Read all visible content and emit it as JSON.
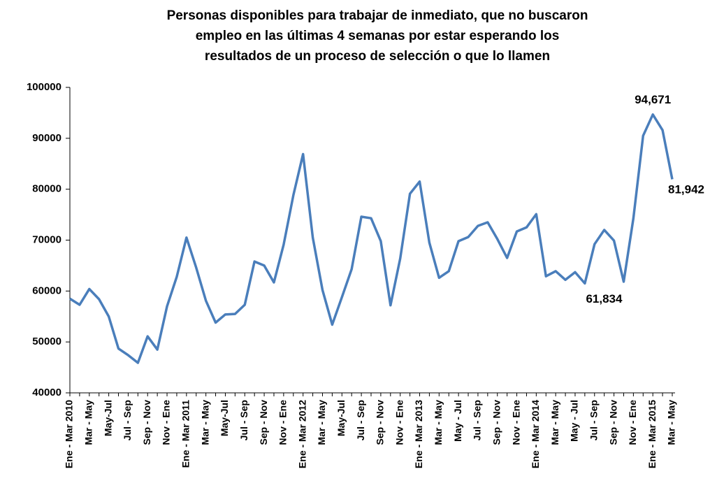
{
  "chart_data": {
    "type": "line",
    "title": [
      "Personas disponibles para trabajar de inmediato, que no buscaron",
      "empleo en las últimas 4 semanas por estar esperando los",
      "resultados de un proceso de selección o que lo llamen"
    ],
    "categories": [
      "Ene - Mar 2010",
      null,
      "Mar - May",
      null,
      "May-Jul",
      null,
      "Jul - Sep",
      null,
      "Sep - Nov",
      null,
      "Nov - Ene",
      null,
      "Ene - Mar 2011",
      null,
      "Mar - May",
      null,
      "May-Jul",
      null,
      "Jul - Sep",
      null,
      "Sep - Nov",
      null,
      "Nov - Ene",
      null,
      "Ene - Mar 2012",
      null,
      "Mar - May",
      null,
      "May-Jul",
      null,
      "Jul - Sep",
      null,
      "Sep - Nov",
      null,
      "Nov - Ene",
      null,
      "Ene - Mar 2013",
      null,
      "Mar - May",
      null,
      "May - Jul",
      null,
      "Jul - Sep",
      null,
      "Sep - Nov",
      null,
      "Nov - Ene",
      null,
      "Ene - Mar 2014",
      null,
      "Mar - May",
      null,
      "May - Jul",
      null,
      "Jul - Sep",
      null,
      "Sep - Nov",
      null,
      "Nov - Ene",
      null,
      "Ene - Mar 2015",
      null,
      "Mar - May"
    ],
    "series": [
      {
        "name": "Personas",
        "color": "#4a7ebb",
        "values": [
          58500,
          57300,
          60400,
          58400,
          55000,
          48700,
          47400,
          45900,
          51100,
          48500,
          57000,
          62800,
          70500,
          64600,
          58100,
          53800,
          55400,
          55500,
          57300,
          65800,
          65000,
          61700,
          69100,
          78800,
          86900,
          70500,
          60200,
          53400,
          58800,
          64300,
          74600,
          74300,
          69800,
          57200,
          66400,
          79100,
          81500,
          69500,
          62600,
          63900,
          69800,
          70600,
          72800,
          73500,
          70200,
          66500,
          71700,
          72500,
          75100,
          62900,
          63900,
          62200,
          63700,
          61500,
          69200,
          72000,
          69900,
          61834,
          74300,
          90500,
          94671,
          91600,
          81942
        ],
        "value_labels": [
          null,
          null,
          null,
          null,
          null,
          null,
          null,
          null,
          null,
          null,
          null,
          null,
          null,
          null,
          null,
          null,
          null,
          null,
          null,
          null,
          null,
          null,
          null,
          null,
          null,
          null,
          null,
          null,
          null,
          null,
          null,
          null,
          null,
          null,
          null,
          null,
          null,
          null,
          null,
          null,
          null,
          null,
          null,
          null,
          null,
          null,
          null,
          null,
          null,
          null,
          null,
          null,
          null,
          null,
          null,
          null,
          null,
          "61,834",
          null,
          null,
          "94,671",
          null,
          "81,942"
        ]
      }
    ],
    "ylim": [
      40000,
      100000
    ],
    "yticks": [
      40000,
      50000,
      60000,
      70000,
      80000,
      90000,
      100000
    ]
  }
}
